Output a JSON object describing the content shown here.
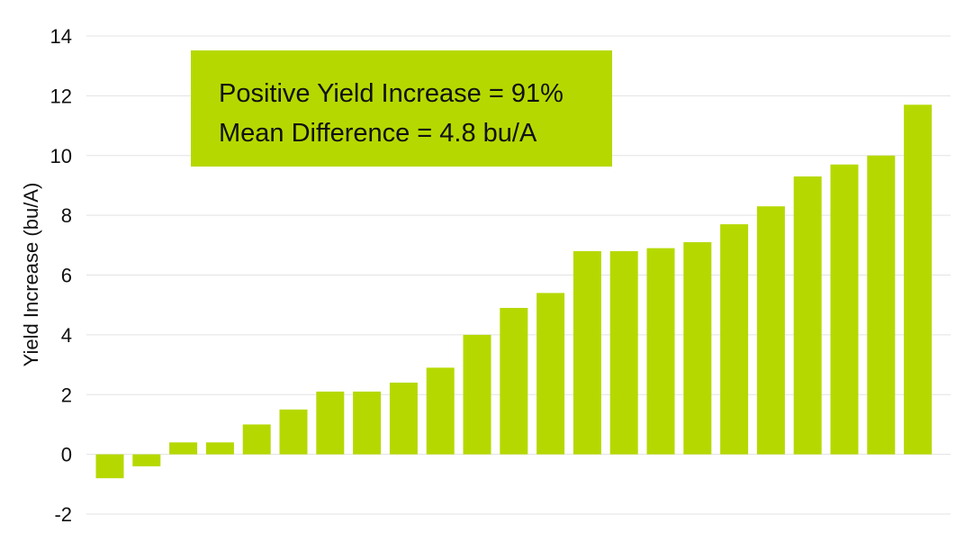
{
  "chart_data": {
    "type": "bar",
    "title": "",
    "xlabel": "",
    "ylabel": "Yield Increase (bu/A)",
    "ylim": [
      -2,
      14
    ],
    "yticks": [
      -2,
      0,
      2,
      4,
      6,
      8,
      10,
      12,
      14
    ],
    "grid": true,
    "bar_color": "#b5d900",
    "values": [
      -0.8,
      -0.4,
      0.4,
      0.4,
      1.0,
      1.5,
      2.1,
      2.1,
      2.4,
      2.9,
      4.0,
      4.9,
      5.4,
      6.8,
      6.8,
      6.9,
      7.1,
      7.7,
      8.3,
      9.3,
      9.7,
      10.0,
      11.7
    ],
    "annotation": {
      "lines": [
        "Positive Yield Increase =  91%",
        "Mean Difference =  4.8 bu/A"
      ],
      "background": "#b5d900"
    }
  }
}
